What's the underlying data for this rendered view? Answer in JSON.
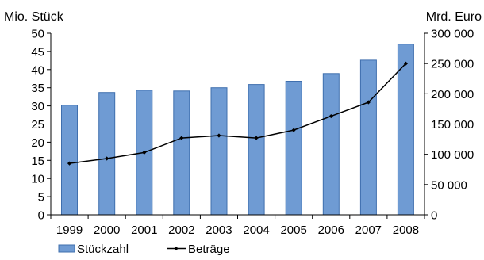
{
  "chart_data": {
    "type": "bar",
    "title": "",
    "categories": [
      "1999",
      "2000",
      "2001",
      "2002",
      "2003",
      "2004",
      "2005",
      "2006",
      "2007",
      "2008"
    ],
    "series": [
      {
        "name": "Stückzahl",
        "type": "bar",
        "axis": "left",
        "values": [
          30.2,
          33.7,
          34.3,
          34.1,
          35.0,
          35.9,
          36.8,
          38.9,
          42.6,
          47.0
        ]
      },
      {
        "name": "Beträge",
        "type": "line",
        "axis": "right",
        "values": [
          85000,
          93000,
          103000,
          127000,
          131000,
          127000,
          140000,
          163000,
          186000,
          250000
        ]
      }
    ],
    "y_left": {
      "label": "Mio. Stück",
      "range": [
        0,
        50
      ],
      "ticks": [
        0,
        5,
        10,
        15,
        20,
        25,
        30,
        35,
        40,
        45,
        50
      ],
      "tick_labels": [
        "0",
        "5",
        "10",
        "15",
        "20",
        "25",
        "30",
        "35",
        "40",
        "45",
        "50"
      ]
    },
    "y_right": {
      "label": "Mrd. Euro",
      "range": [
        0,
        300000
      ],
      "ticks": [
        0,
        50000,
        100000,
        150000,
        200000,
        250000,
        300000
      ],
      "tick_labels": [
        "0",
        "50 000",
        "100 000",
        "150 000",
        "200 000",
        "250 000",
        "300 000"
      ]
    },
    "grid": false,
    "legend_position": "bottom-left",
    "colors": {
      "bar_fill": "#6f9bd3",
      "bar_stroke": "#3f6fae",
      "line": "#000000",
      "axis": "#000000"
    }
  }
}
